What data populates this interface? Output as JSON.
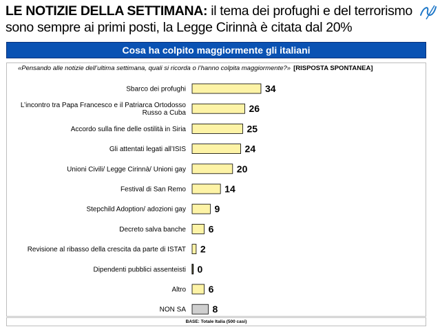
{
  "header": {
    "title_bold": "LE NOTIZIE DELLA SETTIMANA:",
    "title_rest": " il tema dei profughi e del terrorismo sono sempre ai primi posti, la Legge Cirinnà è citata dal 20%"
  },
  "banner": {
    "text": "Cosa ha colpito maggiormente gli italiani"
  },
  "question": {
    "text": "«Pensando alle notizie dell’ultima settimana, quali si ricorda o l’hanno colpita maggiormente?»",
    "tag": "[RISPOSTA SPONTANEA]"
  },
  "colors": {
    "banner": "#0a52b3",
    "bar": "#fdf3a6",
    "bar_stroke": "#000000",
    "bar_nonsa": "#cfcfcf"
  },
  "icons": {
    "logo": "pen-scribble-icon"
  },
  "chart_data": {
    "type": "bar",
    "orientation": "horizontal",
    "categories": [
      "Sbarco dei profughi",
      "L’incontro tra Papa Francesco e il Patriarca Ortodosso Russo a Cuba",
      "Accordo sulla fine delle ostilità in Siria",
      "Gli attentati legati all’ISIS",
      "Unioni Civili/ Legge Cirinnà/ Unioni gay",
      "Festival di San Remo",
      "Stepchild Adoption/ adozioni gay",
      "Decreto salva banche",
      "Revisione al ribasso della crescita da parte di ISTAT",
      "Dipendenti pubblici assenteisti",
      "Altro",
      "NON SA"
    ],
    "label_lines": [
      [
        "Sbarco dei profughi"
      ],
      [
        "L’incontro tra Papa Francesco e il Patriarca Ortodosso",
        "Russo a Cuba"
      ],
      [
        "Accordo sulla fine delle ostilità in Siria"
      ],
      [
        "Gli attentati legati all’ISIS"
      ],
      [
        "Unioni Civili/ Legge Cirinnà/ Unioni gay"
      ],
      [
        "Festival di San Remo"
      ],
      [
        "Stepchild Adoption/ adozioni gay"
      ],
      [
        "Decreto salva banche"
      ],
      [
        "Revisione al ribasso della crescita da parte di ISTAT"
      ],
      [
        "Dipendenti pubblici assenteisti"
      ],
      [
        "Altro"
      ],
      [
        "NON SA"
      ]
    ],
    "values": [
      34,
      26,
      25,
      24,
      20,
      14,
      9,
      6,
      2,
      0,
      6,
      8
    ],
    "highlight_category": "NON SA",
    "unit": "%"
  },
  "footer": {
    "base": "BASE: Totale Italia (500 casi)"
  }
}
